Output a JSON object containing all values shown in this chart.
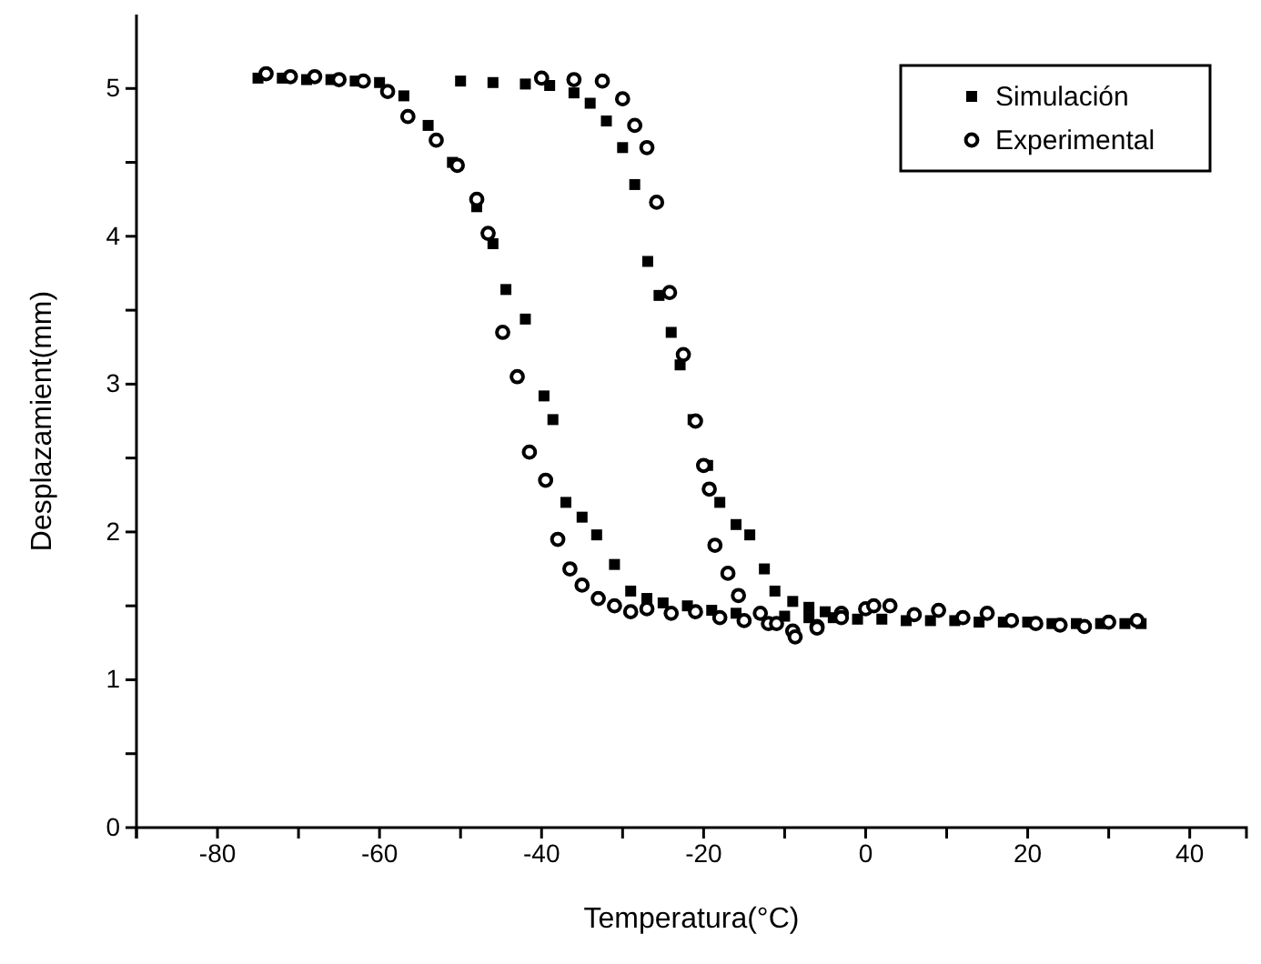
{
  "chart_data": {
    "type": "scatter",
    "xlabel": "Temperatura(°C)",
    "ylabel": "Desplazamient(mm)",
    "xlim": [
      -90,
      47
    ],
    "ylim": [
      0,
      5.5
    ],
    "xticks": [
      {
        "value": -90,
        "label": null
      },
      -80,
      {
        "value": -70,
        "label": null
      },
      -60,
      {
        "value": -50,
        "label": null
      },
      -40,
      {
        "value": -30,
        "label": null
      },
      -20,
      {
        "value": -10,
        "label": null
      },
      0,
      {
        "value": 10,
        "label": null
      },
      20,
      {
        "value": 30,
        "label": null
      },
      40
    ],
    "yticks": [
      0,
      {
        "value": 0.5,
        "label": null
      },
      1,
      {
        "value": 1.5,
        "label": null
      },
      2,
      {
        "value": 2.5,
        "label": null
      },
      3,
      {
        "value": 3.5,
        "label": null
      },
      4,
      {
        "value": 4.5,
        "label": null
      },
      5
    ],
    "legend": "top right",
    "grid": false,
    "series": [
      {
        "name": "Simulación",
        "color": "#000000",
        "marker": "square",
        "x": [
          -75,
          -72,
          -69,
          -66,
          -63,
          -60,
          -57,
          -54,
          -51,
          -48,
          -46,
          -44.4,
          -42,
          -39.7,
          -38.6,
          -37,
          -35,
          -33.2,
          -31,
          -29,
          -27,
          -25,
          -22,
          -19,
          -16,
          -10,
          -7,
          -4,
          -1,
          2,
          5,
          8,
          11,
          14,
          17,
          20,
          23,
          26,
          29,
          32,
          34,
          -50,
          -46,
          -42,
          -39,
          -36,
          -34,
          -32,
          -30,
          -28.5,
          -26.9,
          -25.5,
          -24,
          -22.9,
          -21.3,
          -19.5,
          -18,
          -16,
          -14.3,
          -12.5,
          -11.2,
          -9,
          -7,
          -5
        ],
        "values": [
          5.07,
          5.07,
          5.06,
          5.06,
          5.05,
          5.04,
          4.95,
          4.75,
          4.5,
          4.2,
          3.95,
          3.64,
          3.44,
          2.92,
          2.76,
          2.2,
          2.1,
          1.98,
          1.78,
          1.6,
          1.55,
          1.52,
          1.5,
          1.47,
          1.45,
          1.43,
          1.42,
          1.42,
          1.41,
          1.41,
          1.4,
          1.4,
          1.4,
          1.39,
          1.39,
          1.39,
          1.38,
          1.38,
          1.38,
          1.38,
          1.38,
          5.05,
          5.04,
          5.03,
          5.02,
          4.97,
          4.9,
          4.78,
          4.6,
          4.35,
          3.83,
          3.6,
          3.35,
          3.13,
          2.76,
          2.45,
          2.2,
          2.05,
          1.98,
          1.75,
          1.6,
          1.53,
          1.49,
          1.46
        ]
      },
      {
        "name": "Experimental",
        "color": "#000000",
        "marker": "circle",
        "x": [
          -74,
          -71,
          -68,
          -65,
          -62,
          -59,
          -56.5,
          -53,
          -50.4,
          -48,
          -46.6,
          -44.8,
          -43,
          -41.5,
          -39.5,
          -38,
          -36.5,
          -35,
          -33,
          -31,
          -29,
          -27,
          -24,
          -21,
          -18,
          -15,
          -12,
          -9,
          -6,
          -3,
          0,
          3,
          6,
          9,
          12,
          15,
          18,
          21,
          24,
          27,
          30,
          33.5,
          -40,
          -36,
          -32.5,
          -30,
          -28.5,
          -27,
          -25.8,
          -24.2,
          -22.5,
          -21,
          -20,
          -19.3,
          -18.6,
          -17,
          -15.7,
          -13,
          -11,
          -8.7,
          -6,
          -3,
          1
        ],
        "values": [
          5.1,
          5.08,
          5.08,
          5.06,
          5.05,
          4.98,
          4.81,
          4.65,
          4.48,
          4.25,
          4.02,
          3.35,
          3.05,
          2.54,
          2.35,
          1.95,
          1.75,
          1.64,
          1.55,
          1.5,
          1.46,
          1.48,
          1.45,
          1.46,
          1.42,
          1.4,
          1.38,
          1.33,
          1.36,
          1.45,
          1.48,
          1.5,
          1.44,
          1.47,
          1.42,
          1.45,
          1.4,
          1.38,
          1.37,
          1.36,
          1.39,
          1.4,
          5.07,
          5.06,
          5.05,
          4.93,
          4.75,
          4.6,
          4.23,
          3.62,
          3.2,
          2.75,
          2.45,
          2.29,
          1.91,
          1.72,
          1.57,
          1.45,
          1.38,
          1.29,
          1.35,
          1.42,
          1.5
        ]
      }
    ]
  }
}
